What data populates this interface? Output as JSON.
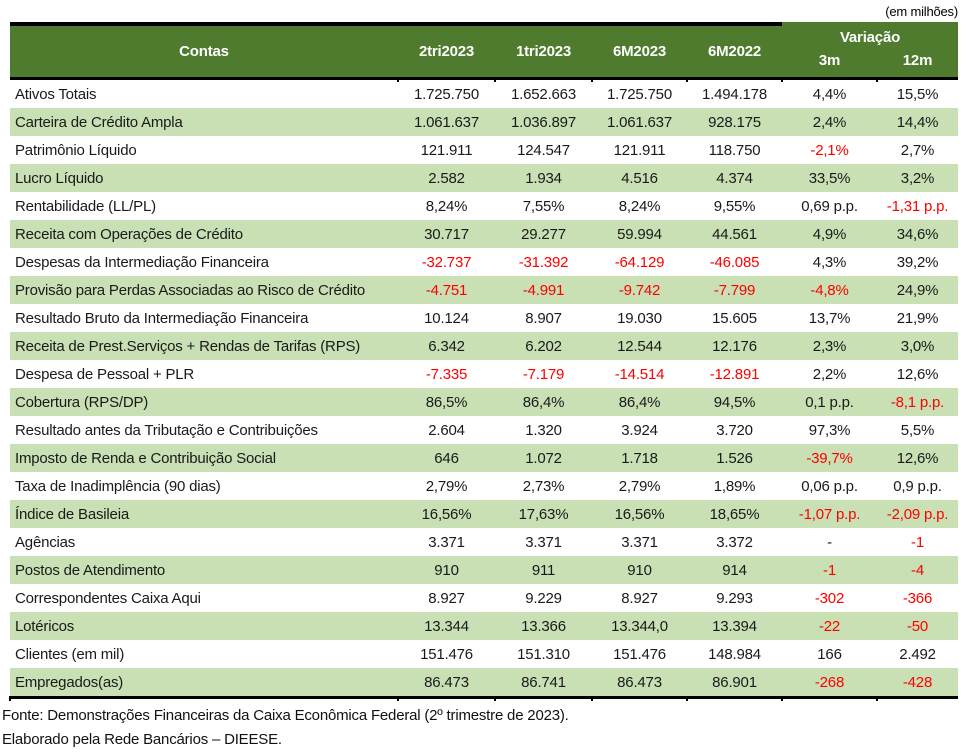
{
  "units_note": "(em milhões)",
  "colors": {
    "header_green": "#4e7b2e",
    "row_green": "#c8e0b4",
    "negative_red": "#ff0000"
  },
  "header": {
    "contas": "Contas",
    "cols": [
      "2tri2023",
      "1tri2023",
      "6M2023",
      "6M2022"
    ],
    "variacao": "Variação",
    "sub": [
      "3m",
      "12m"
    ]
  },
  "rows": [
    {
      "label": "Ativos Totais",
      "v": [
        "1.725.750",
        "1.652.663",
        "1.725.750",
        "1.494.178",
        "4,4%",
        "15,5%"
      ],
      "neg": [
        "",
        "",
        "",
        "",
        "",
        ""
      ]
    },
    {
      "label": "Carteira de Crédito Ampla",
      "v": [
        "1.061.637",
        "1.036.897",
        "1.061.637",
        "928.175",
        "2,4%",
        "14,4%"
      ],
      "neg": [
        "",
        "",
        "",
        "",
        "",
        ""
      ]
    },
    {
      "label": "Patrimônio Líquido",
      "v": [
        "121.911",
        "124.547",
        "121.911",
        "118.750",
        "-2,1%",
        "2,7%"
      ],
      "neg": [
        "",
        "",
        "",
        "",
        "1",
        ""
      ]
    },
    {
      "label": "Lucro Líquido",
      "v": [
        "2.582",
        "1.934",
        "4.516",
        "4.374",
        "33,5%",
        "3,2%"
      ],
      "neg": [
        "",
        "",
        "",
        "",
        "",
        ""
      ]
    },
    {
      "label": "Rentabilidade (LL/PL)",
      "v": [
        "8,24%",
        "7,55%",
        "8,24%",
        "9,55%",
        "0,69 p.p.",
        "-1,31 p.p."
      ],
      "neg": [
        "",
        "",
        "",
        "",
        "",
        "1"
      ]
    },
    {
      "label": "Receita com Operações de Crédito",
      "v": [
        "30.717",
        "29.277",
        "59.994",
        "44.561",
        "4,9%",
        "34,6%"
      ],
      "neg": [
        "",
        "",
        "",
        "",
        "",
        ""
      ]
    },
    {
      "label": "Despesas da Intermediação Financeira",
      "v": [
        "-32.737",
        "-31.392",
        "-64.129",
        "-46.085",
        "4,3%",
        "39,2%"
      ],
      "neg": [
        "1",
        "1",
        "1",
        "1",
        "",
        ""
      ]
    },
    {
      "label": "Provisão para Perdas Associadas ao Risco de Crédito",
      "v": [
        "-4.751",
        "-4.991",
        "-9.742",
        "-7.799",
        "-4,8%",
        "24,9%"
      ],
      "neg": [
        "1",
        "1",
        "1",
        "1",
        "1",
        ""
      ]
    },
    {
      "label": "Resultado Bruto da Intermediação Financeira",
      "v": [
        "10.124",
        "8.907",
        "19.030",
        "15.605",
        "13,7%",
        "21,9%"
      ],
      "neg": [
        "",
        "",
        "",
        "",
        "",
        ""
      ]
    },
    {
      "label": "Receita de Prest.Serviços + Rendas de Tarifas (RPS)",
      "v": [
        "6.342",
        "6.202",
        "12.544",
        "12.176",
        "2,3%",
        "3,0%"
      ],
      "neg": [
        "",
        "",
        "",
        "",
        "",
        ""
      ]
    },
    {
      "label": "Despesa de Pessoal + PLR",
      "v": [
        "-7.335",
        "-7.179",
        "-14.514",
        "-12.891",
        "2,2%",
        "12,6%"
      ],
      "neg": [
        "1",
        "1",
        "1",
        "1",
        "",
        ""
      ]
    },
    {
      "label": "Cobertura (RPS/DP)",
      "v": [
        "86,5%",
        "86,4%",
        "86,4%",
        "94,5%",
        "0,1 p.p.",
        "-8,1 p.p."
      ],
      "neg": [
        "",
        "",
        "",
        "",
        "",
        "1"
      ]
    },
    {
      "label": "Resultado antes da Tributação e Contribuições",
      "v": [
        "2.604",
        "1.320",
        "3.924",
        "3.720",
        "97,3%",
        "5,5%"
      ],
      "neg": [
        "",
        "",
        "",
        "",
        "",
        ""
      ]
    },
    {
      "label": "Imposto de Renda e Contribuição Social",
      "v": [
        "646",
        "1.072",
        "1.718",
        "1.526",
        "-39,7%",
        "12,6%"
      ],
      "neg": [
        "",
        "",
        "",
        "",
        "1",
        ""
      ]
    },
    {
      "label": "Taxa de Inadimplência (90 dias)",
      "v": [
        "2,79%",
        "2,73%",
        "2,79%",
        "1,89%",
        "0,06 p.p.",
        "0,9 p.p."
      ],
      "neg": [
        "",
        "",
        "",
        "",
        "",
        ""
      ]
    },
    {
      "label": "Índice de Basileia",
      "v": [
        "16,56%",
        "17,63%",
        "16,56%",
        "18,65%",
        "-1,07 p.p.",
        "-2,09 p.p."
      ],
      "neg": [
        "",
        "",
        "",
        "",
        "1",
        "1"
      ]
    },
    {
      "label": "Agências",
      "v": [
        "3.371",
        "3.371",
        "3.371",
        "3.372",
        "-",
        "-1"
      ],
      "neg": [
        "",
        "",
        "",
        "",
        "",
        "1"
      ]
    },
    {
      "label": "Postos de Atendimento",
      "v": [
        "910",
        "911",
        "910",
        "914",
        "-1",
        "-4"
      ],
      "neg": [
        "",
        "",
        "",
        "",
        "1",
        "1"
      ]
    },
    {
      "label": "Correspondentes Caixa Aqui",
      "v": [
        "8.927",
        "9.229",
        "8.927",
        "9.293",
        "-302",
        "-366"
      ],
      "neg": [
        "",
        "",
        "",
        "",
        "1",
        "1"
      ]
    },
    {
      "label": "Lotéricos",
      "v": [
        "13.344",
        "13.366",
        "13.344,0",
        "13.394",
        "-22",
        "-50"
      ],
      "neg": [
        "",
        "",
        "",
        "",
        "1",
        "1"
      ]
    },
    {
      "label": "Clientes (em mil)",
      "v": [
        "151.476",
        "151.310",
        "151.476",
        "148.984",
        "166",
        "2.492"
      ],
      "neg": [
        "",
        "",
        "",
        "",
        "",
        ""
      ]
    },
    {
      "label": "Empregados(as)",
      "v": [
        "86.473",
        "86.741",
        "86.473",
        "86.901",
        "-268",
        "-428"
      ],
      "neg": [
        "",
        "",
        "",
        "",
        "1",
        "1"
      ]
    }
  ],
  "footer": {
    "line1": "Fonte: Demonstrações Financeiras da Caixa Econômica Federal (2º trimestre de 2023).",
    "line2": "Elaborado pela Rede Bancários – DIEESE."
  }
}
